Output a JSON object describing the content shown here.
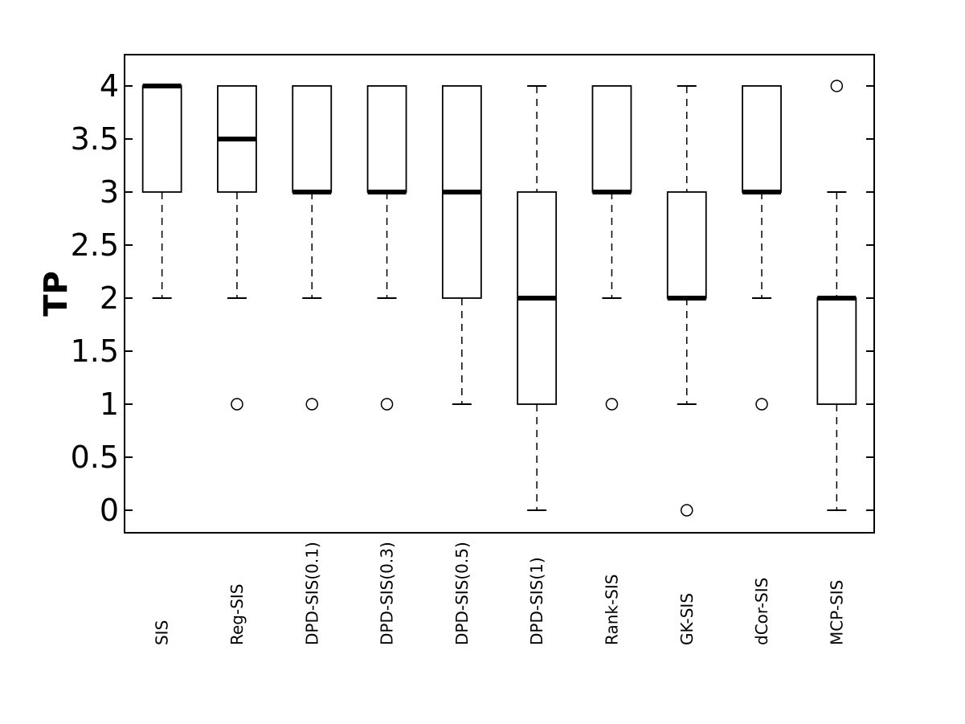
{
  "chart_data": {
    "type": "boxplot",
    "title": "",
    "xlabel": "",
    "ylabel": "TP",
    "categories": [
      "SIS",
      "Reg-SIS",
      "DPD-SIS(0.1)",
      "DPD-SIS(0.3)",
      "DPD-SIS(0.5)",
      "DPD-SIS(1)",
      "Rank-SIS",
      "GK-SIS",
      "dCor-SIS",
      "MCP-SIS"
    ],
    "ylim": [
      -0.212,
      4.295
    ],
    "yticks": [
      0,
      0.5,
      1,
      1.5,
      2,
      2.5,
      3,
      3.5,
      4
    ],
    "ytick_labels": [
      "0",
      "0.5",
      "1",
      "1.5",
      "2",
      "2.5",
      "3",
      "3.5",
      "4"
    ],
    "grid": false,
    "legend_position": "none",
    "boxes": [
      {
        "label": "SIS",
        "q1": 3,
        "median": 4,
        "q3": 4,
        "whisker_low": 2,
        "whisker_high": 4,
        "outliers": []
      },
      {
        "label": "Reg-SIS",
        "q1": 3,
        "median": 3.5,
        "q3": 4,
        "whisker_low": 2,
        "whisker_high": 4,
        "outliers": [
          1
        ]
      },
      {
        "label": "DPD-SIS(0.1)",
        "q1": 3,
        "median": 3,
        "q3": 4,
        "whisker_low": 2,
        "whisker_high": 4,
        "outliers": [
          1
        ]
      },
      {
        "label": "DPD-SIS(0.3)",
        "q1": 3,
        "median": 3,
        "q3": 4,
        "whisker_low": 2,
        "whisker_high": 4,
        "outliers": [
          1
        ]
      },
      {
        "label": "DPD-SIS(0.5)",
        "q1": 2,
        "median": 3,
        "q3": 4,
        "whisker_low": 1,
        "whisker_high": 4,
        "outliers": []
      },
      {
        "label": "DPD-SIS(1)",
        "q1": 1,
        "median": 2,
        "q3": 3,
        "whisker_low": 0,
        "whisker_high": 4,
        "outliers": []
      },
      {
        "label": "Rank-SIS",
        "q1": 3,
        "median": 3,
        "q3": 4,
        "whisker_low": 2,
        "whisker_high": 4,
        "outliers": [
          1
        ]
      },
      {
        "label": "GK-SIS",
        "q1": 2,
        "median": 2,
        "q3": 3,
        "whisker_low": 1,
        "whisker_high": 4,
        "outliers": [
          0
        ]
      },
      {
        "label": "dCor-SIS",
        "q1": 3,
        "median": 3,
        "q3": 4,
        "whisker_low": 2,
        "whisker_high": 4,
        "outliers": [
          1
        ]
      },
      {
        "label": "MCP-SIS",
        "q1": 1,
        "median": 2,
        "q3": 2,
        "whisker_low": 0,
        "whisker_high": 3,
        "outliers": [
          4
        ]
      }
    ],
    "colors": {
      "background": "#ffffff",
      "axis": "#000000",
      "box_stroke": "#000000",
      "median": "#000000",
      "whisker": "#000000",
      "outlier": "#000000",
      "text": "#000000"
    }
  }
}
